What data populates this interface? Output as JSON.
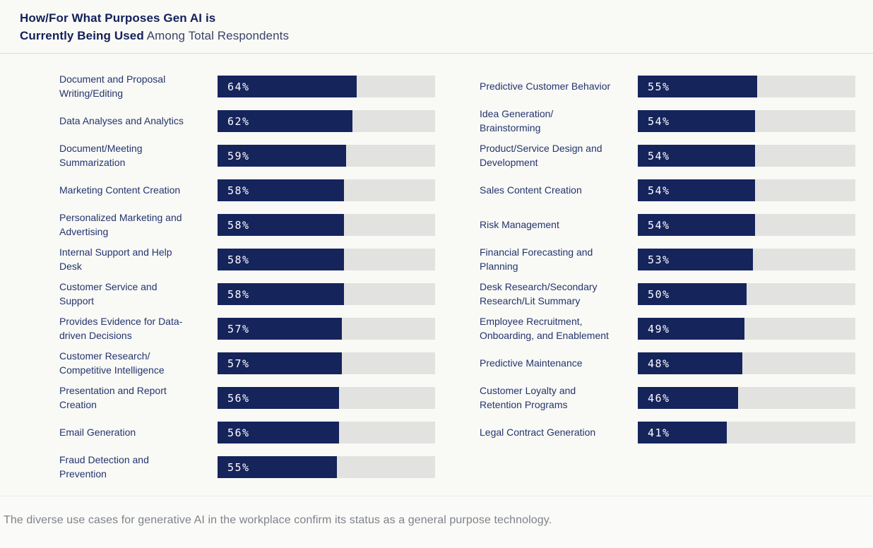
{
  "header": {
    "title_bold_line1": "How/For What Purposes Gen AI is",
    "title_bold_line2": "Currently Being Used",
    "title_regular": " Among Total Respondents"
  },
  "chart_data": {
    "type": "bar",
    "orientation": "horizontal",
    "title": "How/For What Purposes Gen AI is Currently Being Used Among Total Respondents",
    "xlabel": "",
    "ylabel": "",
    "unit": "%",
    "xlim": [
      0,
      100
    ],
    "grid": false,
    "legend": "none",
    "value_labels": "inside-start",
    "bar_color": "#16245c",
    "track_color": "#e2e2e0",
    "columns": [
      {
        "items": [
          {
            "label": "Document and Proposal\nWriting/Editing",
            "value": 64,
            "display": "64%"
          },
          {
            "label": "Data Analyses and Analytics",
            "value": 62,
            "display": "62%"
          },
          {
            "label": "Document/Meeting\nSummarization",
            "value": 59,
            "display": "59%"
          },
          {
            "label": "Marketing Content Creation",
            "value": 58,
            "display": "58%"
          },
          {
            "label": "Personalized Marketing and\nAdvertising",
            "value": 58,
            "display": "58%"
          },
          {
            "label": "Internal Support and Help\nDesk",
            "value": 58,
            "display": "58%"
          },
          {
            "label": "Customer Service and\nSupport",
            "value": 58,
            "display": "58%"
          },
          {
            "label": "Provides Evidence for Data-\ndriven Decisions",
            "value": 57,
            "display": "57%"
          },
          {
            "label": "Customer Research/\nCompetitive Intelligence",
            "value": 57,
            "display": "57%"
          },
          {
            "label": "Presentation and Report\nCreation",
            "value": 56,
            "display": "56%"
          },
          {
            "label": "Email Generation",
            "value": 56,
            "display": "56%"
          },
          {
            "label": "Fraud Detection and\nPrevention",
            "value": 55,
            "display": "55%"
          }
        ]
      },
      {
        "items": [
          {
            "label": "Predictive Customer Behavior",
            "value": 55,
            "display": "55%"
          },
          {
            "label": "Idea Generation/\nBrainstorming",
            "value": 54,
            "display": "54%"
          },
          {
            "label": "Product/Service Design and\nDevelopment",
            "value": 54,
            "display": "54%"
          },
          {
            "label": "Sales Content Creation",
            "value": 54,
            "display": "54%"
          },
          {
            "label": "Risk Management",
            "value": 54,
            "display": "54%"
          },
          {
            "label": "Financial Forecasting and\nPlanning",
            "value": 53,
            "display": "53%"
          },
          {
            "label": "Desk Research/Secondary\nResearch/Lit Summary",
            "value": 50,
            "display": "50%"
          },
          {
            "label": "Employee Recruitment,\nOnboarding, and Enablement",
            "value": 49,
            "display": "49%"
          },
          {
            "label": "Predictive Maintenance",
            "value": 48,
            "display": "48%"
          },
          {
            "label": "Customer Loyalty and\nRetention Programs",
            "value": 46,
            "display": "46%"
          },
          {
            "label": "Legal Contract Generation",
            "value": 41,
            "display": "41%"
          }
        ]
      }
    ]
  },
  "footer": {
    "note": "The diverse use cases for generative AI in the workplace confirm its status as a general purpose technology."
  }
}
